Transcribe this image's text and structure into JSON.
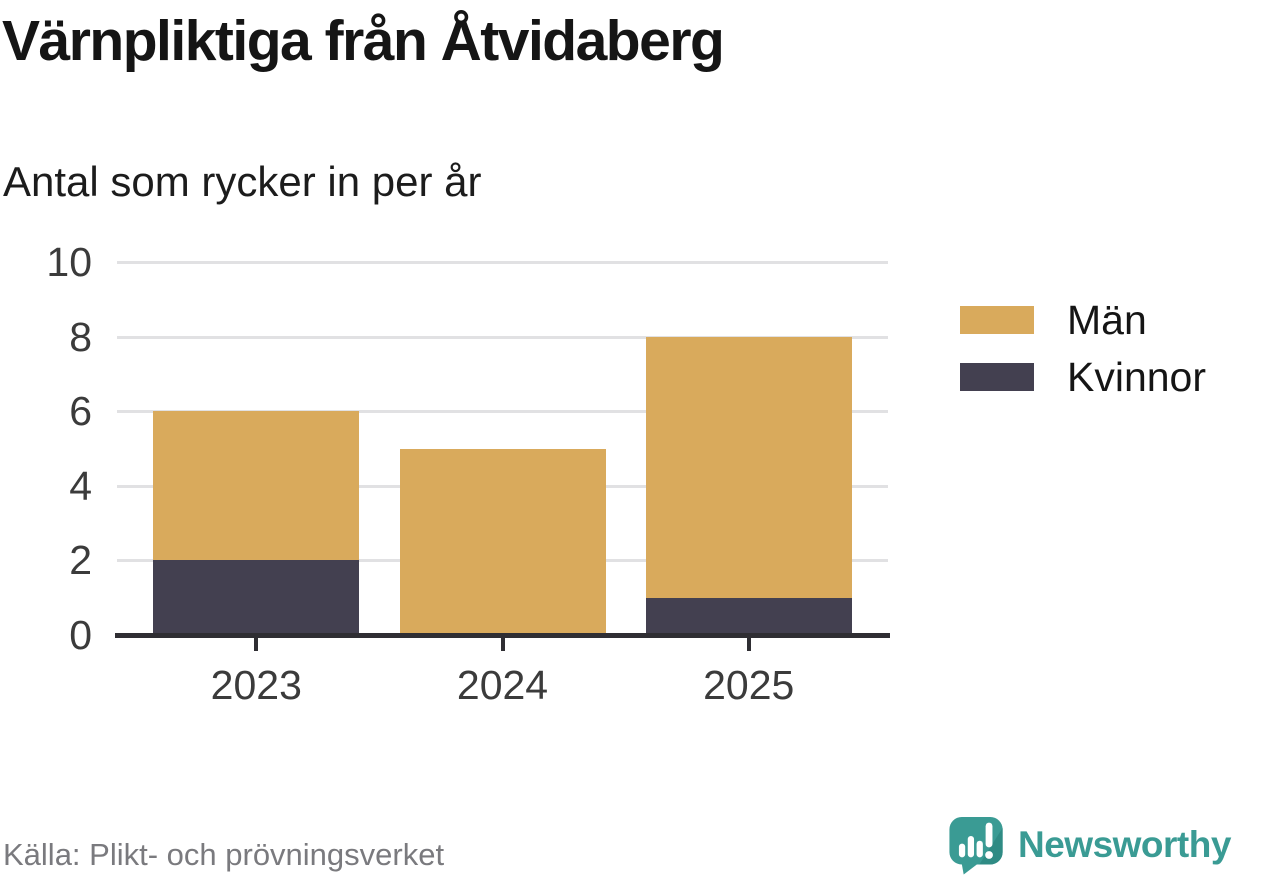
{
  "header": {
    "title": "Värnpliktiga från Åtvidaberg",
    "subtitle": "Antal som rycker in per år"
  },
  "chart_data": {
    "type": "bar",
    "stacked": true,
    "title": "Värnpliktiga från Åtvidaberg",
    "subtitle": "Antal som rycker in per år",
    "categories": [
      "2023",
      "2024",
      "2025"
    ],
    "series": [
      {
        "key": "men",
        "name": "Män",
        "color": "#D9AA5C",
        "values": [
          4,
          5,
          7
        ]
      },
      {
        "key": "women",
        "name": "Kvinnor",
        "color": "#434050",
        "values": [
          2,
          0,
          1
        ]
      }
    ],
    "totals": [
      6,
      5,
      8
    ],
    "xlabel": "",
    "ylabel": "",
    "ylim": [
      0,
      10
    ],
    "yticks": [
      0,
      2,
      4,
      6,
      8,
      10
    ],
    "grid": true,
    "legend_position": "right"
  },
  "legend": {
    "items": [
      {
        "key": "men",
        "label": "Män",
        "color": "#D9AA5C"
      },
      {
        "key": "women",
        "label": "Kvinnor",
        "color": "#434050"
      }
    ]
  },
  "footer": {
    "source": "Källa: Plikt- och prövningsverket",
    "brand": "Newsworthy"
  },
  "colors": {
    "men": "#D9AA5C",
    "women": "#434050",
    "axis": "#2F2E33",
    "gridline": "#E1E1E3",
    "tick_text": "#3B3B3B",
    "source_text": "#7A7A7E",
    "brand_teal": "#3A9B94",
    "brand_teal_shade": "#2F8B84"
  },
  "icons": {
    "brand_logo": "newsworthy-speech-bubble-bar-chart-icon"
  }
}
